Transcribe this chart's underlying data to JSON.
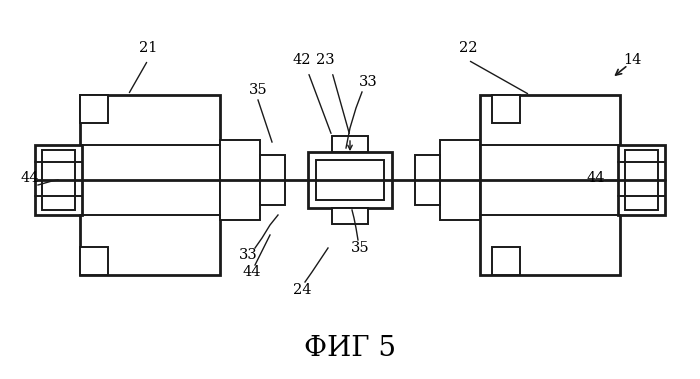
{
  "title": "ФИГ 5",
  "title_fontsize": 20,
  "background_color": "#ffffff",
  "line_color": "#1a1a1a",
  "thin_lw": 1.4,
  "thick_lw": 2.0,
  "fig_w": 7.0,
  "fig_h": 3.79,
  "dpi": 100
}
